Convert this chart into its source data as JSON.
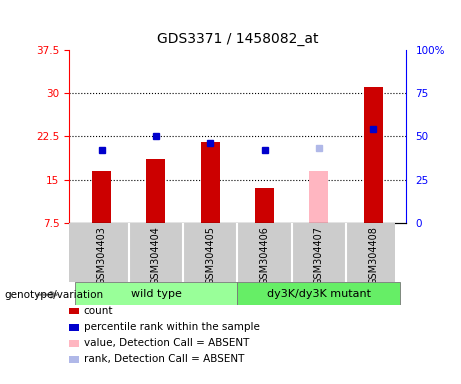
{
  "title": "GDS3371 / 1458082_at",
  "samples": [
    "GSM304403",
    "GSM304404",
    "GSM304405",
    "GSM304406",
    "GSM304407",
    "GSM304408"
  ],
  "count_values": [
    16.5,
    18.5,
    21.5,
    13.5,
    16.5,
    31.0
  ],
  "count_colors": [
    "#cc0000",
    "#cc0000",
    "#cc0000",
    "#cc0000",
    "#ffb6c1",
    "#cc0000"
  ],
  "rank_values": [
    42,
    50,
    46,
    42,
    43,
    54
  ],
  "rank_colors": [
    "#0000cc",
    "#0000cc",
    "#0000cc",
    "#0000cc",
    "#b0b8e8",
    "#0000cc"
  ],
  "absent_flags": [
    false,
    false,
    false,
    false,
    true,
    false
  ],
  "ylim_left": [
    7.5,
    37.5
  ],
  "ylim_right": [
    0,
    100
  ],
  "yticks_left": [
    7.5,
    15.0,
    22.5,
    30.0,
    37.5
  ],
  "ytick_labels_left": [
    "7.5",
    "15",
    "22.5",
    "30",
    "37.5"
  ],
  "yticks_right": [
    0,
    25,
    50,
    75,
    100
  ],
  "ytick_labels_right": [
    "0",
    "25",
    "50",
    "75",
    "100%"
  ],
  "hlines": [
    15.0,
    22.5,
    30.0
  ],
  "wild_type_label": "wild type",
  "mutant_label": "dy3K/dy3K mutant",
  "genotype_label": "genotype/variation",
  "legend_items": [
    {
      "label": "count",
      "color": "#cc0000"
    },
    {
      "label": "percentile rank within the sample",
      "color": "#0000cc"
    },
    {
      "label": "value, Detection Call = ABSENT",
      "color": "#ffb6c1"
    },
    {
      "label": "rank, Detection Call = ABSENT",
      "color": "#b0b8e8"
    }
  ],
  "bar_width": 0.35,
  "marker_size": 5,
  "gray_bg_color": "#cccccc",
  "green_wt_color": "#99ff99",
  "green_mut_color": "#66ee66"
}
